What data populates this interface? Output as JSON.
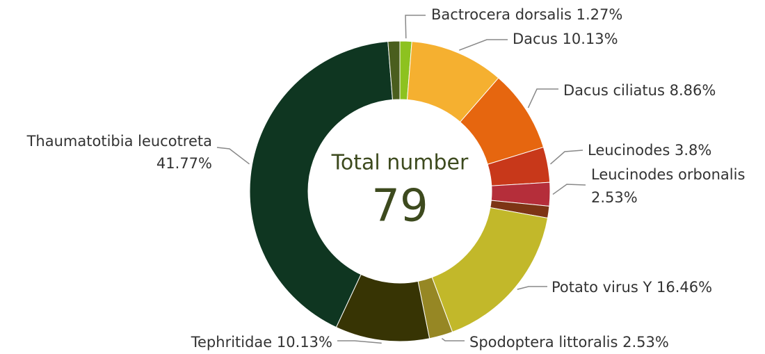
{
  "chart_data": {
    "type": "donut",
    "center_title": "Total number",
    "total": 79,
    "categories": [
      "Bactrocera dorsalis",
      "Dacus",
      "Dacus ciliatus",
      "Leucinodes",
      "Leucinodes orbonalis",
      null,
      "Potato virus Y",
      "Spodoptera littoralis",
      "Tephritidae",
      "Thaumatotibia leucotreta",
      null
    ],
    "values": [
      1.27,
      10.13,
      8.86,
      3.8,
      2.53,
      1.27,
      16.46,
      2.53,
      10.13,
      41.77,
      1.27
    ],
    "value_labels": [
      "1.27%",
      "10.13%",
      "8.86%",
      "3.8%",
      "2.53%",
      null,
      "16.46%",
      "2.53%",
      "10.13%",
      "41.77%",
      null
    ],
    "colors": [
      "#8dc21f",
      "#f5b030",
      "#e6660f",
      "#c8381a",
      "#b52e3a",
      "#7d3515",
      "#c2b82a",
      "#968724",
      "#373404",
      "#0f3621",
      "#4a5e1e"
    ]
  }
}
